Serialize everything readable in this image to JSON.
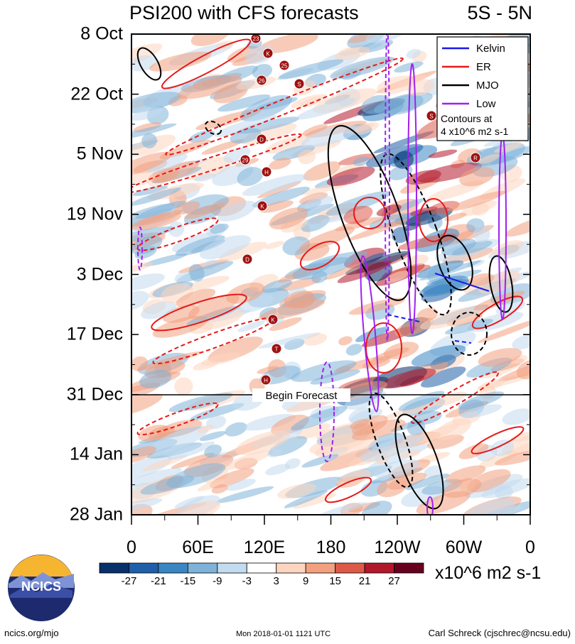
{
  "title_left": "PSI200 with CFS forecasts",
  "title_right": "5S - 5N",
  "begin_forecast_label": "Begin Forecast",
  "legend": {
    "items": [
      {
        "label": "Kelvin",
        "color": "#1a1ae6"
      },
      {
        "label": "ER",
        "color": "#e61a1a"
      },
      {
        "label": "MJO",
        "color": "#000000"
      },
      {
        "label": "Low",
        "color": "#a020f0"
      }
    ],
    "note_line1": "Contours at",
    "note_line2": "4 x10^6 m2 s-1"
  },
  "colorbar": {
    "units": "x10^6 m2 s-1",
    "tick_labels": [
      "-27",
      "-21",
      "-15",
      "-9",
      "-3",
      "3",
      "9",
      "15",
      "21",
      "27"
    ],
    "colors": [
      "#08306b",
      "#1f5ea8",
      "#3a86c4",
      "#7fb2d9",
      "#c3dbee",
      "#ffffff",
      "#fdd5c0",
      "#f3a07f",
      "#dd5a4a",
      "#b2182b",
      "#67001f"
    ]
  },
  "footer": {
    "left": "ncics.org/mjo",
    "center": "Mon 2018-01-01 1121 UTC",
    "right": "Carl Schreck (cjschrec@ncsu.edu)"
  },
  "logo_text": "NCICS",
  "storm_labels": [
    "23",
    "K",
    "25",
    "26",
    "S",
    "S",
    "D",
    "29",
    "H",
    "K",
    "D",
    "R",
    "K",
    "T",
    "H"
  ],
  "chart_data": {
    "type": "heatmap",
    "title": "PSI200 with CFS forecasts",
    "subtitle": "5S - 5N",
    "x_tick_labels": [
      "0",
      "60E",
      "120E",
      "180",
      "120W",
      "60W",
      "0"
    ],
    "x_tick_degrees_east": [
      0,
      60,
      120,
      180,
      240,
      300,
      360
    ],
    "xlim": [
      0,
      360
    ],
    "y_tick_labels": [
      "8 Oct",
      "22 Oct",
      "5 Nov",
      "19 Nov",
      "3 Dec",
      "17 Dec",
      "31 Dec",
      "14 Jan",
      "28 Jan"
    ],
    "y_tick_days": [
      0,
      14,
      28,
      42,
      56,
      70,
      84,
      98,
      112
    ],
    "ylim_days": [
      0,
      112
    ],
    "forecast_start_label": "31 Dec",
    "contour_interval_text": "4 x10^6 m2 s-1",
    "series": [
      {
        "name": "Kelvin"
      },
      {
        "name": "ER"
      },
      {
        "name": "MJO"
      },
      {
        "name": "Low"
      }
    ],
    "colorbar_levels": [
      -27,
      -21,
      -15,
      -9,
      -3,
      3,
      9,
      15,
      21,
      27
    ],
    "legend_position": "top-right"
  }
}
